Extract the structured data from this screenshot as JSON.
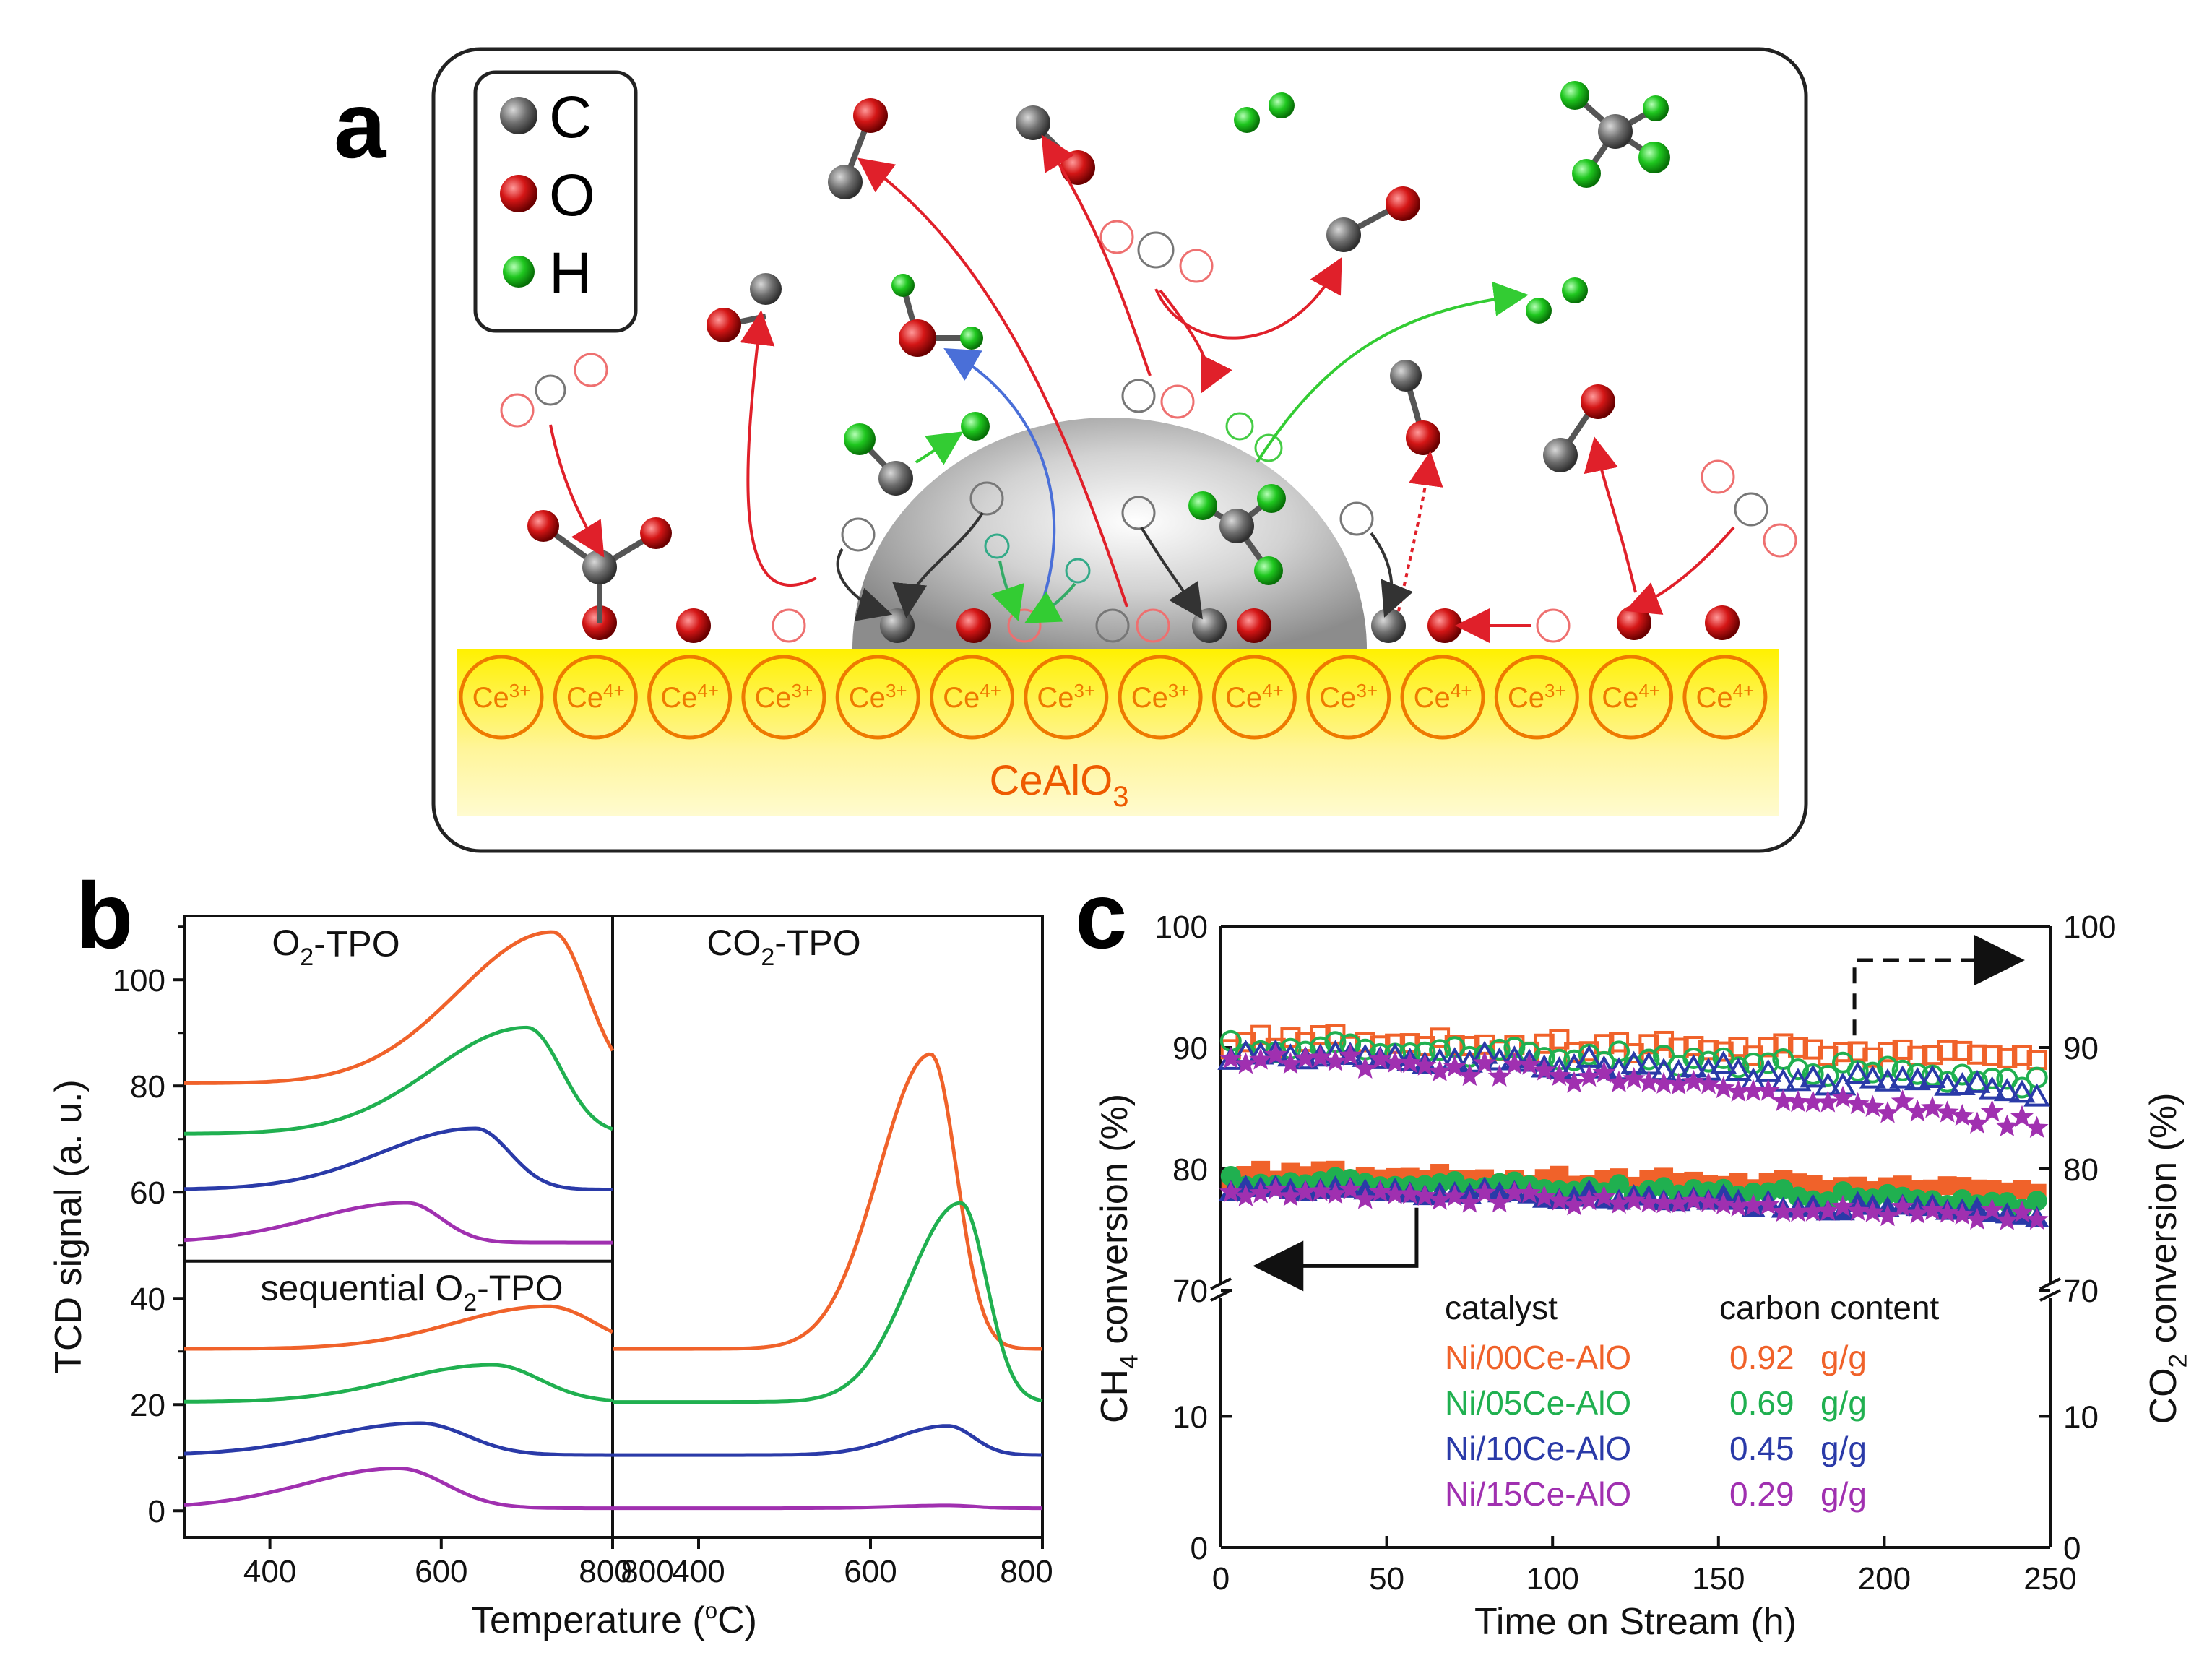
{
  "panel_labels": {
    "a": "a",
    "b": "b",
    "c": "c"
  },
  "colors": {
    "carbon": "#6b6b6b",
    "oxygen": "#cc1010",
    "hydrogen": "#1fbf1f",
    "substrate": "#ffee55",
    "ce_ring": "#ee7a00",
    "arrow_red": "#e0202a",
    "arrow_green": "#33cc33",
    "arrow_blue": "#4a6fd8",
    "s00": "#f0622a",
    "s05": "#20b050",
    "s10": "#2a3aa8",
    "s15": "#a030b0"
  },
  "schematic": {
    "legend": [
      {
        "symbol": "carbon-atom",
        "label": "C"
      },
      {
        "symbol": "oxygen-atom",
        "label": "O"
      },
      {
        "symbol": "hydrogen-atom",
        "label": "H"
      }
    ],
    "ce_ions": [
      "Ce3+",
      "Ce4+",
      "Ce4+",
      "Ce3+",
      "Ce3+",
      "Ce4+",
      "Ce3+",
      "Ce3+",
      "Ce4+",
      "Ce3+",
      "Ce4+",
      "Ce3+",
      "Ce4+",
      "Ce4+"
    ],
    "substrate_main": "CeAlO",
    "substrate_sub": "3"
  },
  "panel_b": {
    "chart_data": {
      "type": "line",
      "ylabel": "TCD signal (a. u.)",
      "xlabel": "Temperature (°C)",
      "xlabel_main": "Temperature (",
      "xlabel_sup": "o",
      "xlabel_end": "C)",
      "left_title_main": "O",
      "left_title_sub": "2",
      "left_title_end": "-TPO",
      "left_title2_main": "sequential O",
      "left_title2_sub": "2",
      "left_title2_end": "-TPO",
      "right_title_main": "CO",
      "right_title_sub": "2",
      "right_title_end": "-TPO",
      "yticks": [
        "0",
        "20",
        "40",
        "60",
        "80",
        "100"
      ],
      "ytick_values": [
        0,
        20,
        40,
        60,
        80,
        100
      ],
      "ylim": [
        -5,
        112
      ],
      "left_xticks": [
        "400",
        "600",
        "800"
      ],
      "right_xticks": [
        "800",
        "400",
        "600",
        "800"
      ],
      "xlim": [
        300,
        800
      ],
      "series_left_top": [
        {
          "name": "Ni/00Ce-AlO",
          "baseline": 80.5,
          "peak_x": 730,
          "peak_y": 109
        },
        {
          "name": "Ni/05Ce-AlO",
          "baseline": 71,
          "peak_x": 700,
          "peak_y": 91
        },
        {
          "name": "Ni/10Ce-AlO",
          "baseline": 60.5,
          "peak_x": 640,
          "peak_y": 72
        },
        {
          "name": "Ni/15Ce-AlO",
          "baseline": 50.5,
          "peak_x": 560,
          "peak_y": 58
        }
      ],
      "series_left_bottom": [
        {
          "name": "Ni/00Ce-AlO",
          "baseline": 30.5,
          "peak_x": 725,
          "peak_y": 38.5
        },
        {
          "name": "Ni/05Ce-AlO",
          "baseline": 20.5,
          "peak_x": 660,
          "peak_y": 27.5
        },
        {
          "name": "Ni/10Ce-AlO",
          "baseline": 10.5,
          "peak_x": 575,
          "peak_y": 16.5
        },
        {
          "name": "Ni/15Ce-AlO",
          "baseline": 0.5,
          "peak_x": 550,
          "peak_y": 8
        }
      ],
      "series_right": [
        {
          "name": "Ni/00Ce-AlO",
          "baseline": 30.5,
          "peak_x": 670,
          "peak_y": 86
        },
        {
          "name": "Ni/05Ce-AlO",
          "baseline": 20.5,
          "peak_x": 705,
          "peak_y": 58
        },
        {
          "name": "Ni/10Ce-AlO",
          "baseline": 10.5,
          "peak_x": 690,
          "peak_y": 16
        },
        {
          "name": "Ni/15Ce-AlO",
          "baseline": 0.5,
          "peak_x": 690,
          "peak_y": 1
        }
      ]
    }
  },
  "panel_c": {
    "chart_data": {
      "type": "scatter",
      "xlabel": "Time on Stream (h)",
      "ylabel_left_main": "CH",
      "ylabel_left_sub": "4",
      "ylabel_left_end": " conversion (%)",
      "ylabel_right_main": "CO",
      "ylabel_right_sub": "2",
      "ylabel_right_end": " conversion (%)",
      "xticks": [
        "0",
        "50",
        "100",
        "150",
        "200",
        "250"
      ],
      "xtick_values": [
        0,
        50,
        100,
        150,
        200,
        250
      ],
      "xlim": [
        0,
        250
      ],
      "yticks_upper": [
        "70",
        "80",
        "90",
        "100"
      ],
      "yticks_lower": [
        "0",
        "10"
      ],
      "ylim_upper": [
        70,
        100
      ],
      "ylim_lower": [
        0,
        20
      ],
      "legend_header": [
        "catalyst",
        "carbon content"
      ],
      "legend": [
        {
          "name": "Ni/00Ce-AlO",
          "value": "0.92",
          "unit": "g/g",
          "co2_start": 90.5,
          "co2_end": 89,
          "ch4_start": 79.5,
          "ch4_end": 78
        },
        {
          "name": "Ni/05Ce-AlO",
          "value": "0.69",
          "unit": "g/g",
          "co2_start": 90,
          "co2_end": 87,
          "ch4_start": 79,
          "ch4_end": 77
        },
        {
          "name": "Ni/10Ce-AlO",
          "value": "0.45",
          "unit": "g/g",
          "co2_start": 89.5,
          "co2_end": 86,
          "ch4_start": 78.5,
          "ch4_end": 76
        },
        {
          "name": "Ni/15Ce-AlO",
          "value": "0.29",
          "unit": "g/g",
          "co2_start": 89,
          "co2_end": 83.5,
          "ch4_start": 78,
          "ch4_end": 76
        }
      ]
    }
  }
}
